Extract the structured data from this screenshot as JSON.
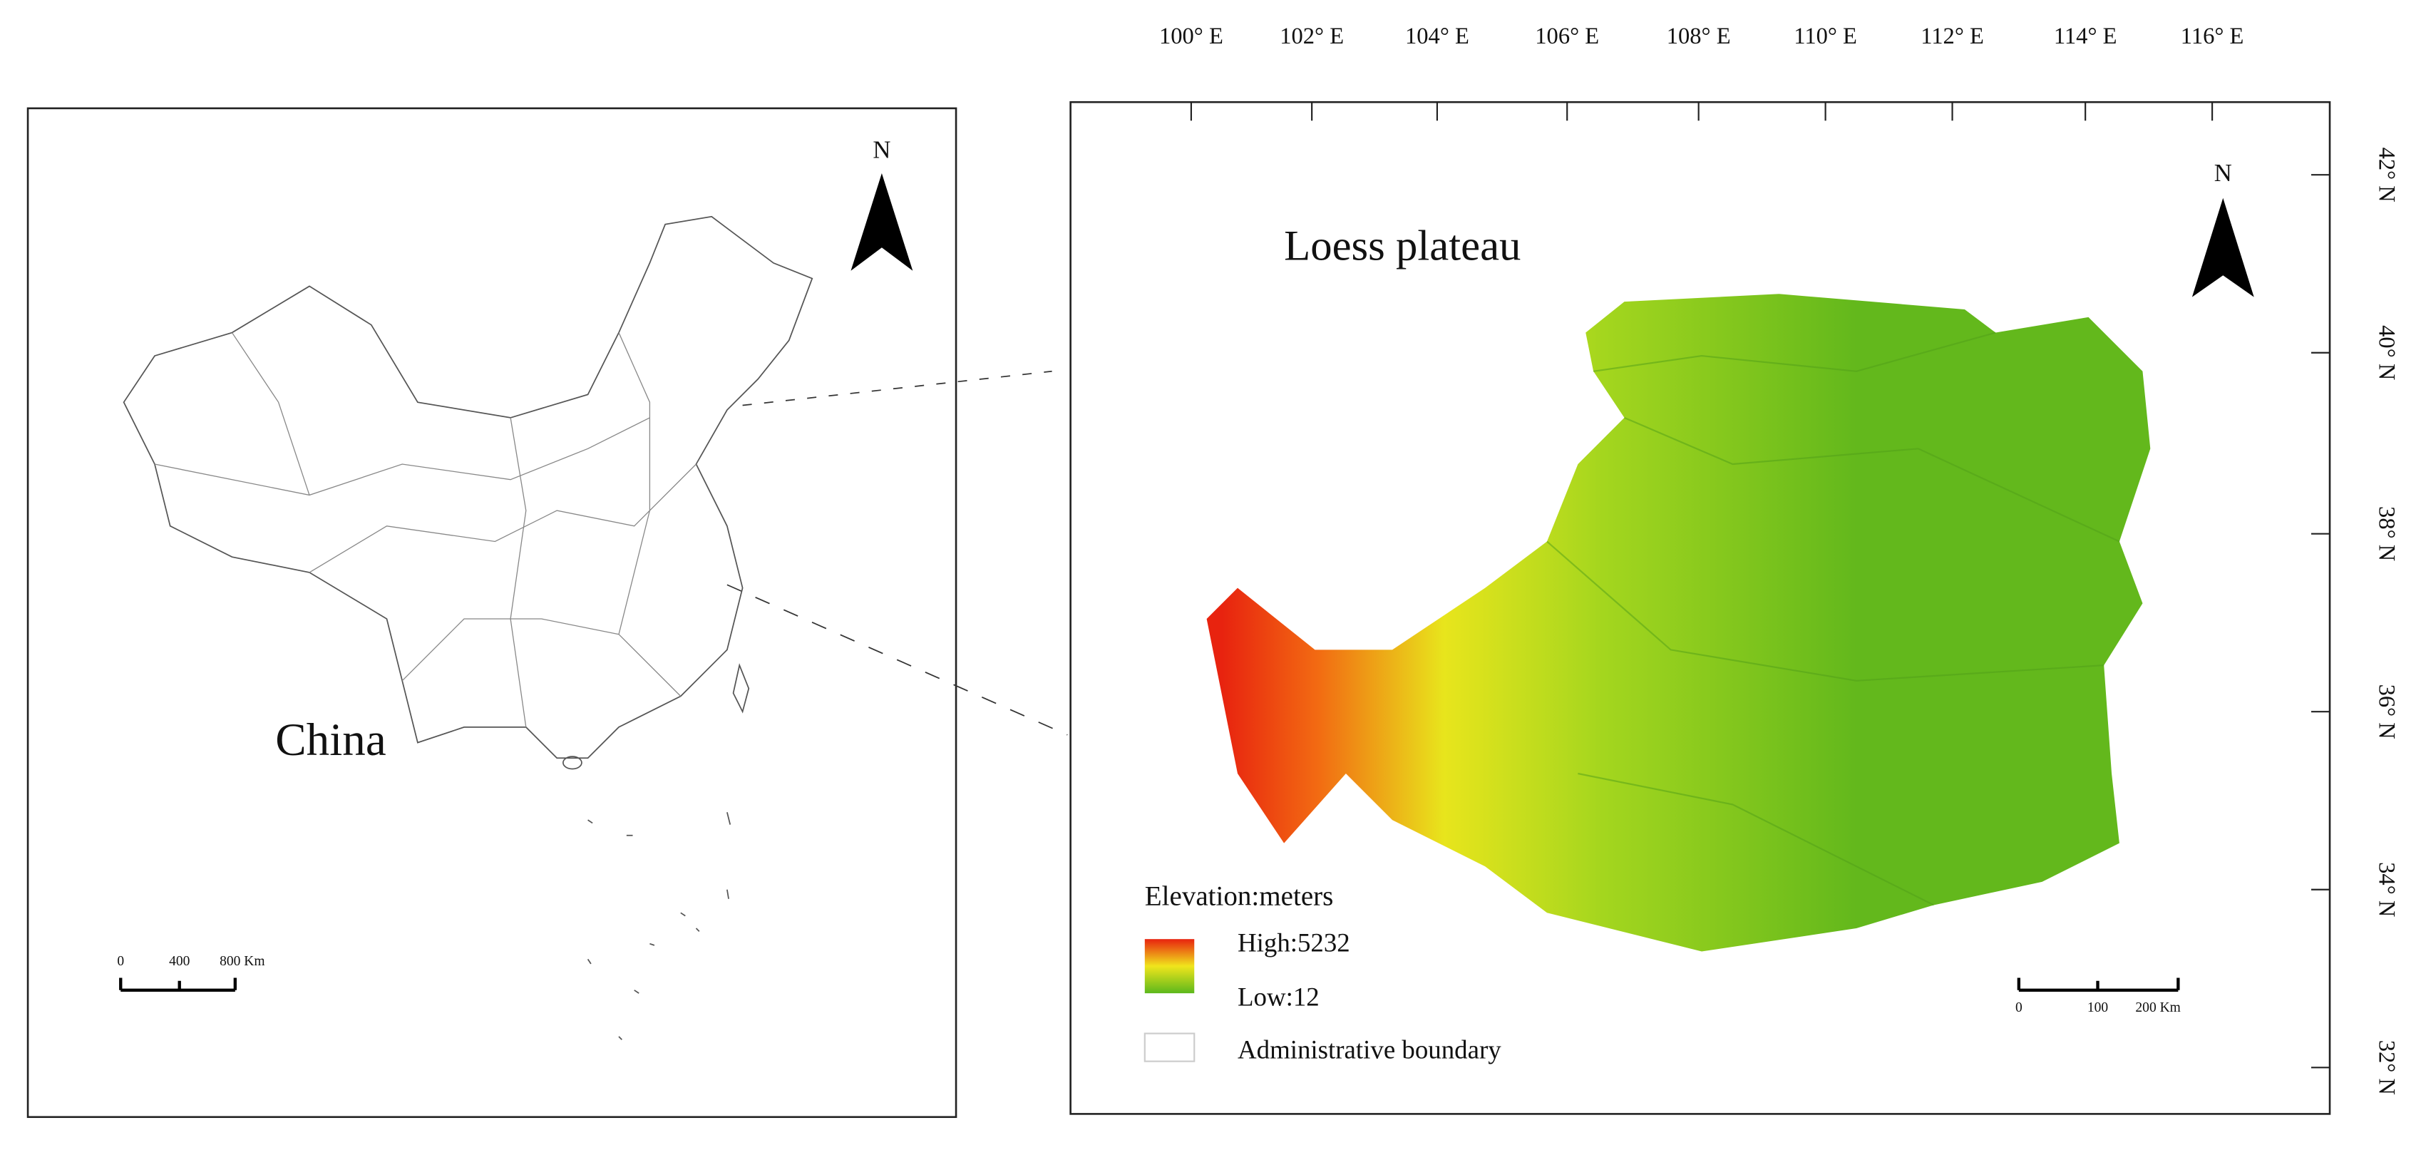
{
  "left_map": {
    "label": "China",
    "north": "N",
    "scale_bar": [
      "0",
      "400",
      "800 Km"
    ]
  },
  "right_map": {
    "title": "Loess plateau",
    "north": "N",
    "longitude_labels": [
      "100° E",
      "102° E",
      "104° E",
      "106° E",
      "108° E",
      "110° E",
      "112° E",
      "114° E",
      "116° E"
    ],
    "latitude_labels": [
      "42° N",
      "40° N",
      "38° N",
      "36° N",
      "34° N",
      "32° N"
    ],
    "scale_bar": [
      "0",
      "100",
      "200 Km"
    ],
    "legend": {
      "title": "Elevation:meters",
      "high": "High:5232",
      "low": "Low:12",
      "boundary": "Administrative boundary"
    }
  }
}
